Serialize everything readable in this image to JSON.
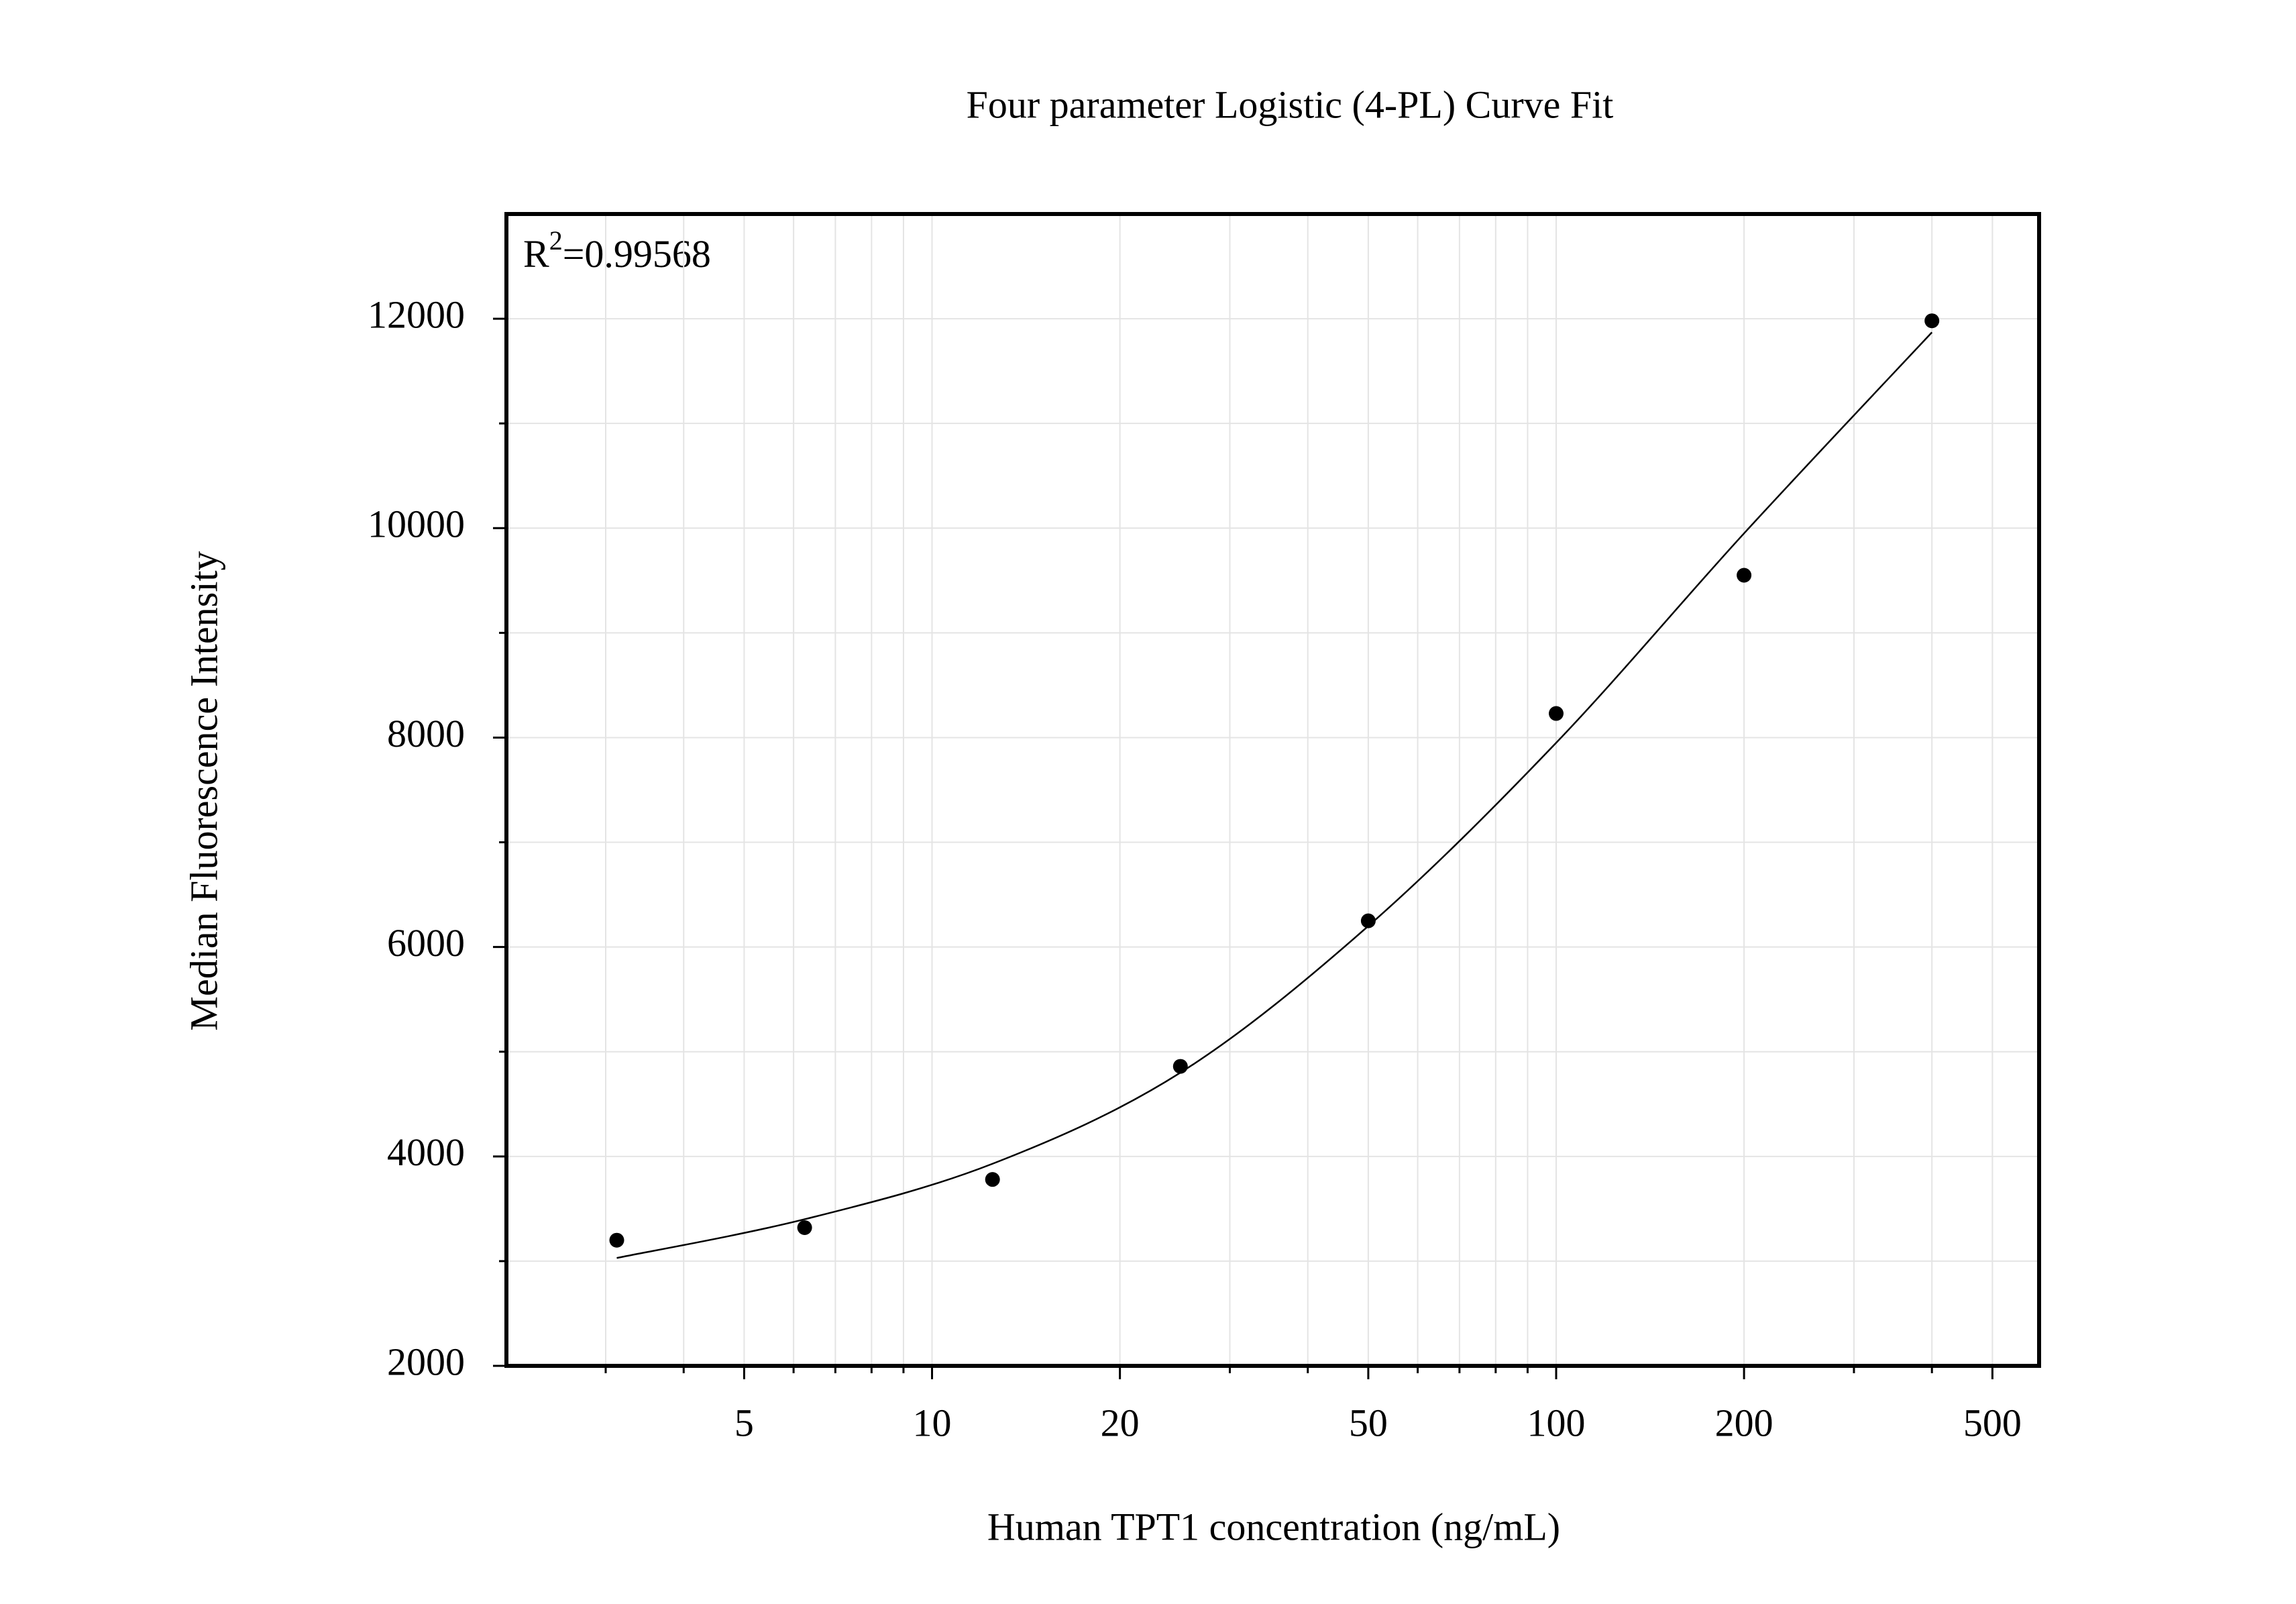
{
  "chart_data": {
    "type": "scatter",
    "title": "Four parameter Logistic (4-PL) Curve Fit",
    "x_label": "Human TPT1 concentration (ng/mL)",
    "y_label": "Median Fluorescence Intensity",
    "annotation": {
      "symbol": "R",
      "superscript": "2",
      "text": "=0.99568"
    },
    "x_scale": "log",
    "xlim": [
      2.08,
      594
    ],
    "xticks": [
      5,
      10,
      20,
      50,
      100,
      200,
      500
    ],
    "ylim": [
      2000,
      13000
    ],
    "yticks": [
      2000,
      4000,
      6000,
      8000,
      10000,
      12000
    ],
    "grid": true,
    "minor_ticks": true,
    "series": [
      {
        "kind": "points",
        "color": "#000000",
        "x": [
          3.125,
          6.25,
          12.5,
          25,
          50,
          100,
          200,
          400
        ],
        "values": [
          3200,
          3320,
          3780,
          4860,
          6250,
          8230,
          9550,
          11980
        ]
      },
      {
        "kind": "fit",
        "color": "#000000",
        "x": [
          3.125,
          6.25,
          12.5,
          25,
          50,
          100,
          200,
          400
        ],
        "values": [
          3030,
          3400,
          3930,
          4800,
          6200,
          7950,
          9950,
          11870
        ]
      }
    ]
  }
}
